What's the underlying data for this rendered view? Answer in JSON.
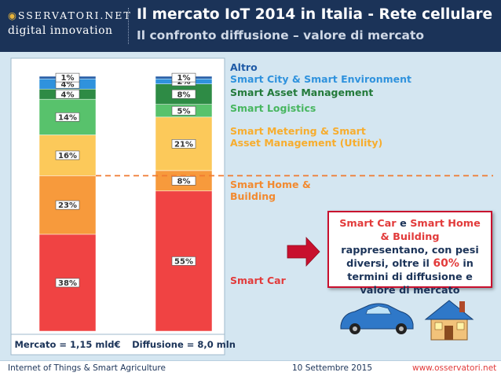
{
  "header": {
    "logo_top": "SSERVATORI.NET",
    "logo_bottom": "digital innovation",
    "title": "Il mercato IoT 2014 in Italia - Rete cellulare",
    "subtitle": "Il confronto diffusione – valore di mercato"
  },
  "chart_data": {
    "type": "bar",
    "stacked": true,
    "unit": "%",
    "categories": [
      "Mercato = 1,15 mld€",
      "Diffusione = 8,0 mln"
    ],
    "series": [
      {
        "name": "Smart Car",
        "values": [
          38,
          55
        ],
        "color": "#f04343"
      },
      {
        "name": "Smart Home & Building",
        "values": [
          23,
          8
        ],
        "color": "#f79a3c"
      },
      {
        "name": "Smart Metering & Smart Asset Management (Utility)",
        "values": [
          16,
          21
        ],
        "color": "#fcc95a"
      },
      {
        "name": "Smart Logistics",
        "values": [
          14,
          5
        ],
        "color": "#58c26c"
      },
      {
        "name": "Smart Asset Management",
        "values": [
          4,
          8
        ],
        "color": "#2e8b45"
      },
      {
        "name": "Smart City & Smart Environment",
        "values": [
          4,
          2
        ],
        "color": "#2f92dd"
      },
      {
        "name": "Altro",
        "values": [
          1,
          1
        ],
        "color": "#2b60a8"
      }
    ],
    "value_labels": [
      [
        "38%",
        "23%",
        "16%",
        "14%",
        "4%",
        "4%",
        "1%"
      ],
      [
        "55%",
        "8%",
        "21%",
        "5%",
        "8%",
        "2%",
        "1%"
      ]
    ],
    "legend_lines": [
      {
        "series": "Smart Car",
        "lines": [
          "Smart Car"
        ],
        "color": "#e23b3b"
      },
      {
        "series": "Smart Home & Building",
        "lines": [
          "Smart Home &",
          "Building"
        ],
        "color": "#f28a30"
      },
      {
        "series": "Smart Metering & Smart Asset Management (Utility)",
        "lines": [
          "Smart Metering & Smart",
          "Asset Management (Utility)"
        ],
        "color": "#f7ad2e"
      },
      {
        "series": "Smart Logistics",
        "lines": [
          "Smart Logistics"
        ],
        "color": "#47b65f"
      },
      {
        "series": "Smart Asset Management",
        "lines": [
          "Smart Asset Management"
        ],
        "color": "#237a3a"
      },
      {
        "series": "Smart City & Smart Environment",
        "lines": [
          "Smart City & Smart Environment"
        ],
        "color": "#2f92dd"
      },
      {
        "series": "Altro",
        "lines": [
          "Altro"
        ],
        "color": "#1f5aa6"
      }
    ],
    "reference_line": {
      "category": "Mercato = 1,15 mld€",
      "at_cumulative_percent": 61,
      "color": "#f07a30",
      "style": "dashed"
    }
  },
  "callout": {
    "part1": "Smart Car",
    "part2": " e ",
    "part3": "Smart Home & Building",
    "part4": " rappresentano, con pesi diversi, oltre il ",
    "part5": "60%",
    "part6": " in termini di diffusione e valore di mercato"
  },
  "colors": {
    "header_bg": "#1b3358",
    "content_bg": "#d4e6f1",
    "accent_red": "#e23b3b",
    "callout_border": "#c8102e"
  },
  "icons": [
    "red-arrow-icon",
    "blue-car-icon",
    "house-icon"
  ],
  "footer": {
    "left": "Internet of Things & Smart Agriculture",
    "center": "10 Settembre 2015",
    "right": "www.osservatori.net"
  }
}
